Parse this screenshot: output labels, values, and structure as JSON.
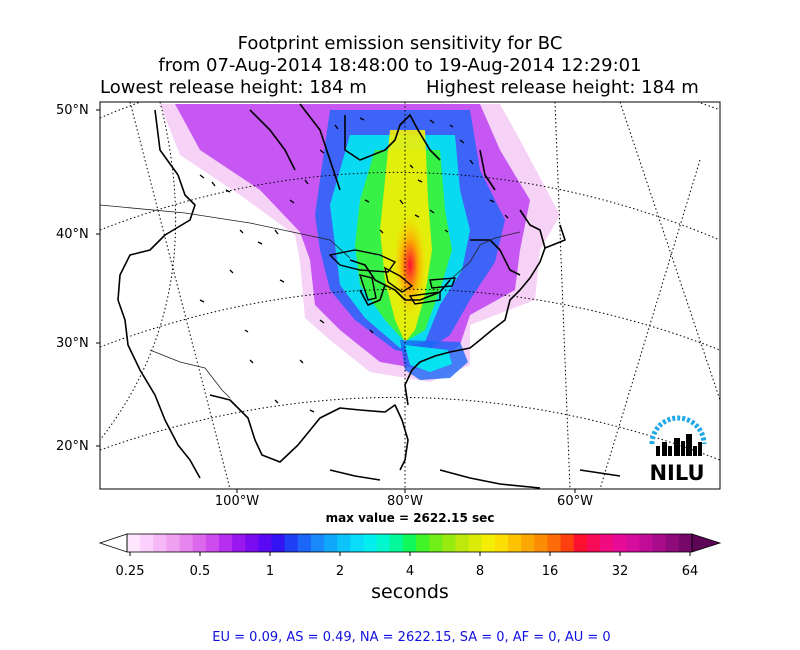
{
  "title": {
    "line1": "Footprint emission sensitivity for BC",
    "line2": "from 07-Aug-2014 18:48:00 to 19-Aug-2014 12:29:01",
    "lowest": "Lowest release height: 184 m",
    "highest": "Highest release height: 184 m"
  },
  "map": {
    "lat_labels": [
      "50°N",
      "40°N",
      "30°N",
      "20°N"
    ],
    "lon_labels": [
      "100°W",
      "80°W",
      "60°W"
    ],
    "max_value": "max value = 2622.15 sec",
    "logo_text": "NILU"
  },
  "colorbar": {
    "ticks": [
      "0.25",
      "0.5",
      "1",
      "2",
      "4",
      "8",
      "16",
      "32",
      "64"
    ],
    "label": "seconds",
    "colors": [
      "#ffe6ff",
      "#fcd0fc",
      "#f6b8f6",
      "#f0a0f0",
      "#e884ee",
      "#dc68ec",
      "#cc4cee",
      "#b62ef0",
      "#9a18f0",
      "#7a0cf0",
      "#5a0af2",
      "#3414f2",
      "#2040f6",
      "#1c66f8",
      "#1888fa",
      "#10a8fa",
      "#0cc4fa",
      "#08dcf8",
      "#00eef0",
      "#00f6cc",
      "#00f898",
      "#10f85a",
      "#40f428",
      "#70ee18",
      "#98ea10",
      "#bce80c",
      "#dcec08",
      "#f4ee04",
      "#fcde02",
      "#fcc202",
      "#fca804",
      "#fc8c04",
      "#fc6c08",
      "#fc4010",
      "#fc1030",
      "#f80c58",
      "#f00c80",
      "#e60c98",
      "#d60c9c",
      "#c00c96",
      "#a80c8a",
      "#8e0a7a",
      "#76086a"
    ]
  },
  "regions": "EU = 0.09,  AS = 0.49,  NA = 2622.15,  SA = 0,  AF = 0,  AU = 0"
}
